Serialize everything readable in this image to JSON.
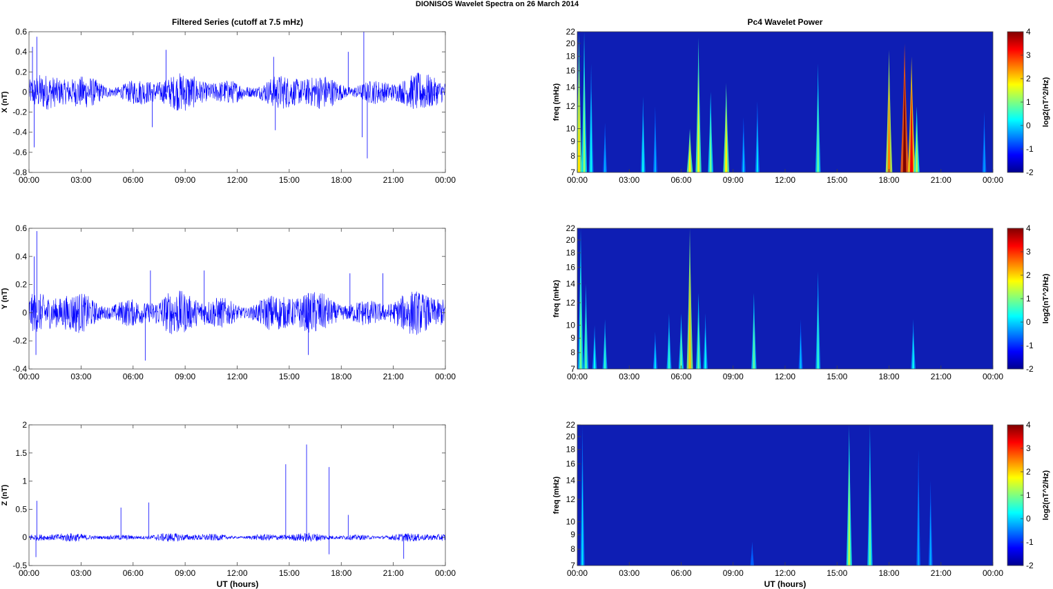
{
  "figure": {
    "title": "DIONISOS Wavelet Spectra on 26 March     2014",
    "left_title": "Filtered Series (cutoff at 7.5 mHz)",
    "right_title": "Pc4 Wavelet Power",
    "xlabel": "UT (hours)"
  },
  "chart_data": [
    {
      "type": "line",
      "ylabel": "X (nT)",
      "x_range_hours": [
        0,
        24
      ],
      "ylim": [
        -0.8,
        0.6
      ],
      "yticks": [
        -0.8,
        -0.6,
        -0.4,
        -0.2,
        0,
        0.2,
        0.4,
        0.6
      ],
      "ytick_labels": [
        "-0.8",
        "-0.6",
        "-0.4",
        "-0.2",
        "0",
        "0.2",
        "0.4",
        "0.6"
      ],
      "xtick_labels": [
        "00:00",
        "03:00",
        "06:00",
        "09:00",
        "12:00",
        "15:00",
        "18:00",
        "21:00",
        "00:00"
      ],
      "color": "#0000ff",
      "noise_amplitude": 0.12,
      "spikes": [
        [
          0.2,
          0.45
        ],
        [
          0.3,
          -0.55
        ],
        [
          0.45,
          0.55
        ],
        [
          7.1,
          -0.35
        ],
        [
          7.9,
          0.42
        ],
        [
          14.1,
          0.35
        ],
        [
          14.2,
          -0.38
        ],
        [
          18.4,
          0.4
        ],
        [
          19.3,
          0.6
        ],
        [
          19.5,
          -0.66
        ],
        [
          19.2,
          -0.45
        ]
      ]
    },
    {
      "type": "line",
      "ylabel": "Y (nT)",
      "x_range_hours": [
        0,
        24
      ],
      "ylim": [
        -0.4,
        0.6
      ],
      "yticks": [
        -0.4,
        -0.2,
        0,
        0.2,
        0.4,
        0.6
      ],
      "ytick_labels": [
        "-0.4",
        "-0.2",
        "0",
        "0.2",
        "0.4",
        "0.6"
      ],
      "xtick_labels": [
        "00:00",
        "03:00",
        "06:00",
        "09:00",
        "12:00",
        "15:00",
        "18:00",
        "21:00",
        "00:00"
      ],
      "color": "#0000ff",
      "noise_amplitude": 0.1,
      "spikes": [
        [
          0.3,
          0.4
        ],
        [
          0.45,
          0.58
        ],
        [
          0.4,
          -0.3
        ],
        [
          6.7,
          -0.34
        ],
        [
          7.0,
          0.3
        ],
        [
          10.1,
          0.3
        ],
        [
          16.1,
          -0.3
        ],
        [
          18.5,
          0.28
        ],
        [
          20.4,
          0.28
        ]
      ]
    },
    {
      "type": "line",
      "ylabel": "Z (nT)",
      "x_range_hours": [
        0,
        24
      ],
      "ylim": [
        -0.5,
        2
      ],
      "yticks": [
        -0.5,
        0,
        0.5,
        1,
        1.5,
        2
      ],
      "ytick_labels": [
        "-0.5",
        "0",
        "0.5",
        "1",
        "1.5",
        "2"
      ],
      "xtick_labels": [
        "00:00",
        "03:00",
        "06:00",
        "09:00",
        "12:00",
        "15:00",
        "18:00",
        "21:00",
        "00:00"
      ],
      "color": "#0000ff",
      "noise_amplitude": 0.05,
      "spikes": [
        [
          0.45,
          0.65
        ],
        [
          0.4,
          -0.35
        ],
        [
          5.3,
          0.53
        ],
        [
          6.9,
          0.62
        ],
        [
          14.8,
          1.3
        ],
        [
          16.0,
          1.65
        ],
        [
          17.3,
          1.25
        ],
        [
          17.3,
          -0.3
        ],
        [
          18.4,
          0.4
        ],
        [
          21.6,
          -0.38
        ]
      ]
    },
    {
      "type": "heatmap",
      "ylabel": "freq (mHz)",
      "x_range_hours": [
        0,
        24
      ],
      "ylim": [
        7,
        22
      ],
      "yscale": "log",
      "yticks": [
        7,
        8,
        9,
        10,
        12,
        14,
        16,
        18,
        20,
        22
      ],
      "ytick_labels": [
        "7",
        "8",
        "9",
        "10",
        "12",
        "14",
        "16",
        "18",
        "20",
        "22"
      ],
      "xtick_labels": [
        "00:00",
        "03:00",
        "06:00",
        "09:00",
        "12:00",
        "15:00",
        "18:00",
        "21:00",
        "00:00"
      ],
      "colorbar_label": "log2(nT^2/Hz)",
      "colorbar_ticks": [
        "4",
        "3",
        "2",
        "1",
        "0",
        "-1",
        "-2"
      ],
      "clim": [
        -2,
        4
      ],
      "bursts": [
        [
          0.1,
          22,
          1.6
        ],
        [
          0.4,
          22,
          0.8
        ],
        [
          0.8,
          17,
          0.0
        ],
        [
          1.6,
          10.5,
          -0.5
        ],
        [
          3.8,
          13,
          0.0
        ],
        [
          4.5,
          12,
          -0.5
        ],
        [
          6.5,
          10,
          1.5
        ],
        [
          7.0,
          21,
          1.3
        ],
        [
          7.7,
          13.5,
          0.6
        ],
        [
          8.6,
          14.5,
          1.5
        ],
        [
          9.6,
          11,
          -0.4
        ],
        [
          10.4,
          12.5,
          -0.2
        ],
        [
          13.9,
          17,
          0.5
        ],
        [
          18.0,
          19,
          2.2
        ],
        [
          18.9,
          20,
          3.9
        ],
        [
          19.3,
          18,
          3.0
        ],
        [
          19.6,
          12,
          1.0
        ],
        [
          23.5,
          11.5,
          -0.6
        ]
      ]
    },
    {
      "type": "heatmap",
      "ylabel": "freq (mHz)",
      "x_range_hours": [
        0,
        24
      ],
      "ylim": [
        7,
        22
      ],
      "yscale": "log",
      "yticks": [
        7,
        8,
        9,
        10,
        12,
        14,
        16,
        18,
        20,
        22
      ],
      "ytick_labels": [
        "7",
        "8",
        "9",
        "10",
        "12",
        "14",
        "16",
        "18",
        "20",
        "22"
      ],
      "xtick_labels": [
        "00:00",
        "03:00",
        "06:00",
        "09:00",
        "12:00",
        "15:00",
        "18:00",
        "21:00",
        "00:00"
      ],
      "colorbar_label": "log2(nT^2/Hz)",
      "colorbar_ticks": [
        "4",
        "3",
        "2",
        "1",
        "0",
        "-1",
        "-2"
      ],
      "clim": [
        -2,
        4
      ],
      "bursts": [
        [
          0.2,
          22,
          0.6
        ],
        [
          0.5,
          14,
          0.4
        ],
        [
          1.0,
          10,
          0.0
        ],
        [
          1.6,
          10.5,
          0.2
        ],
        [
          4.5,
          9.5,
          -0.2
        ],
        [
          5.3,
          11,
          0.2
        ],
        [
          6.0,
          11,
          0.5
        ],
        [
          6.5,
          22,
          1.8
        ],
        [
          7.0,
          13,
          0.5
        ],
        [
          7.4,
          11,
          0.0
        ],
        [
          10.2,
          13,
          0.5
        ],
        [
          12.9,
          10.5,
          -0.4
        ],
        [
          13.9,
          15.5,
          0.2
        ],
        [
          19.4,
          10.5,
          0.0
        ]
      ]
    },
    {
      "type": "heatmap",
      "ylabel": "freq (mHz)",
      "x_range_hours": [
        0,
        24
      ],
      "ylim": [
        7,
        22
      ],
      "yscale": "log",
      "yticks": [
        7,
        8,
        9,
        10,
        12,
        14,
        16,
        18,
        20,
        22
      ],
      "ytick_labels": [
        "7",
        "8",
        "9",
        "10",
        "12",
        "14",
        "16",
        "18",
        "20",
        "22"
      ],
      "xtick_labels": [
        "00:00",
        "03:00",
        "06:00",
        "09:00",
        "12:00",
        "15:00",
        "18:00",
        "21:00",
        "00:00"
      ],
      "colorbar_label": "log2(nT^2/Hz)",
      "colorbar_ticks": [
        "4",
        "3",
        "2",
        "1",
        "0",
        "-1",
        "-2"
      ],
      "clim": [
        -2,
        4
      ],
      "bursts": [
        [
          0.3,
          22,
          -0.2
        ],
        [
          15.7,
          22,
          1.0
        ],
        [
          16.9,
          22,
          0.5
        ],
        [
          19.7,
          18,
          -0.6
        ],
        [
          20.4,
          14,
          -0.5
        ],
        [
          10.1,
          8.5,
          -1.0
        ]
      ]
    }
  ]
}
